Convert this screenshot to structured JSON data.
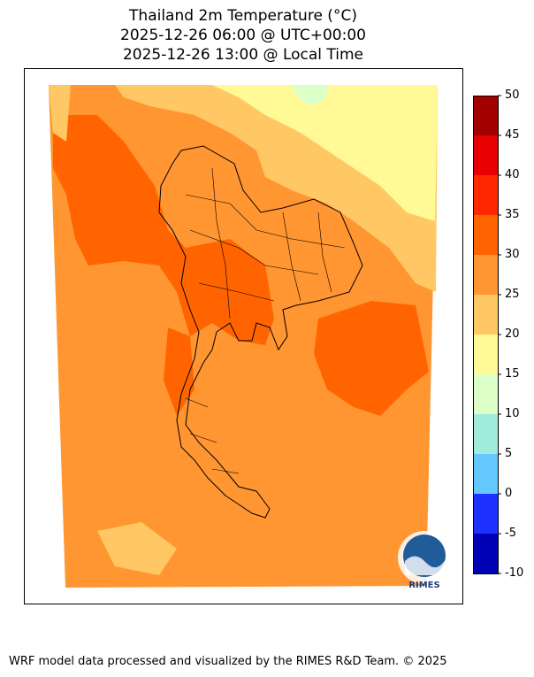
{
  "title": {
    "line1": "Thailand 2m Temperature (°C)",
    "line2": "2025-12-26 06:00 @ UTC+00:00",
    "line3": "2025-12-26 13:00 @ Local Time"
  },
  "colorbar": {
    "ticks": [
      "50",
      "45",
      "40",
      "35",
      "30",
      "25",
      "20",
      "15",
      "10",
      "5",
      "0",
      "-5",
      "-10"
    ],
    "bins": [
      {
        "range": [
          45,
          50
        ],
        "color": "#a50000"
      },
      {
        "range": [
          40,
          45
        ],
        "color": "#e60000"
      },
      {
        "range": [
          35,
          40
        ],
        "color": "#ff2800"
      },
      {
        "range": [
          30,
          35
        ],
        "color": "#ff6400"
      },
      {
        "range": [
          25,
          30
        ],
        "color": "#ff9632"
      },
      {
        "range": [
          20,
          25
        ],
        "color": "#ffc864"
      },
      {
        "range": [
          15,
          20
        ],
        "color": "#fffa96"
      },
      {
        "range": [
          10,
          15
        ],
        "color": "#dcffc8"
      },
      {
        "range": [
          5,
          10
        ],
        "color": "#a0ebdc"
      },
      {
        "range": [
          0,
          5
        ],
        "color": "#64c8ff"
      },
      {
        "range": [
          -5,
          0
        ],
        "color": "#1e32ff"
      },
      {
        "range": [
          -10,
          -5
        ],
        "color": "#0000b4"
      }
    ]
  },
  "logo": {
    "text": "RIMES"
  },
  "footer": "WRF model data processed and visualized by the RIMES R&D Team. © 2025"
}
